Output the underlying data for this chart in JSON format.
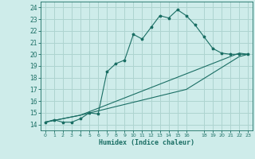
{
  "xlabel": "Humidex (Indice chaleur)",
  "bg_color": "#ceecea",
  "grid_color": "#aed4d0",
  "line_color": "#1a6e64",
  "xlim": [
    -0.5,
    23.5
  ],
  "ylim": [
    13.5,
    24.5
  ],
  "xticks": [
    0,
    1,
    2,
    3,
    4,
    5,
    6,
    7,
    8,
    9,
    10,
    11,
    12,
    13,
    14,
    15,
    16,
    18,
    19,
    20,
    21,
    22,
    23
  ],
  "yticks": [
    14,
    15,
    16,
    17,
    18,
    19,
    20,
    21,
    22,
    23,
    24
  ],
  "line1_x": [
    0,
    1,
    2,
    3,
    4,
    5,
    6,
    7,
    8,
    9,
    10,
    11,
    12,
    13,
    14,
    15,
    16,
    17,
    18,
    19,
    20,
    21,
    22,
    23
  ],
  "line1_y": [
    14.2,
    14.4,
    14.2,
    14.2,
    14.5,
    15.0,
    14.9,
    18.5,
    19.2,
    19.5,
    21.7,
    21.3,
    22.3,
    23.3,
    23.1,
    23.8,
    23.3,
    22.5,
    21.5,
    20.5,
    20.1,
    20.0,
    20.0,
    20.0
  ],
  "line2_x": [
    0,
    4,
    22,
    23
  ],
  "line2_y": [
    14.2,
    14.8,
    20.1,
    20.0
  ],
  "line3_x": [
    0,
    4,
    16,
    22,
    23
  ],
  "line3_y": [
    14.2,
    14.8,
    17.0,
    19.8,
    20.0
  ],
  "marker_size": 2.5,
  "line_width": 0.8
}
